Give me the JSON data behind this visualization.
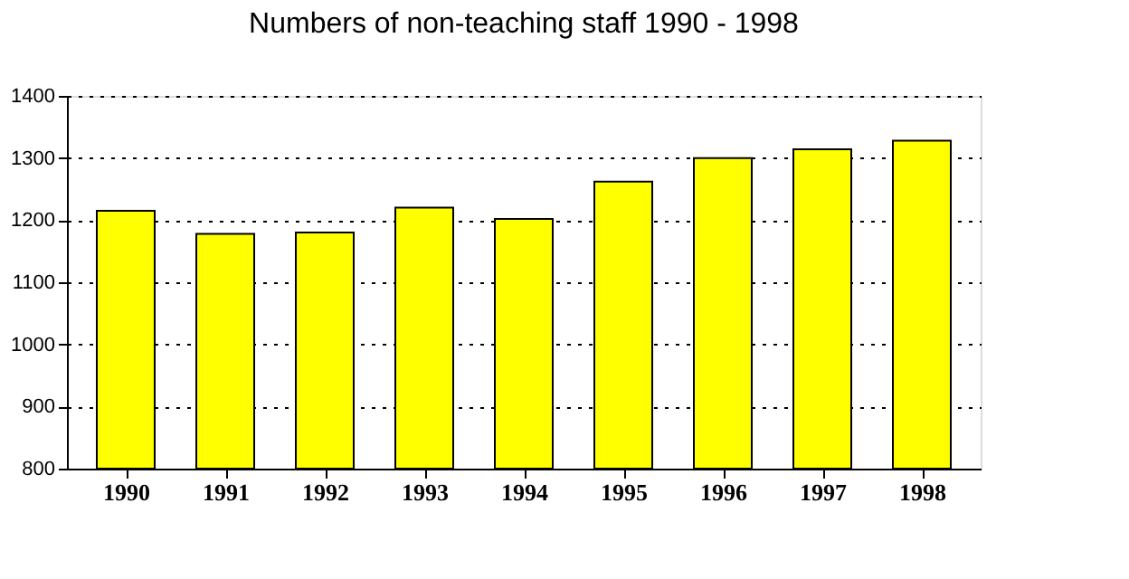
{
  "chart_data": {
    "type": "bar",
    "title": "Numbers of non-teaching staff 1990 - 1998",
    "categories": [
      "1990",
      "1991",
      "1992",
      "1993",
      "1994",
      "1995",
      "1996",
      "1997",
      "1998"
    ],
    "values": [
      1215,
      1178,
      1180,
      1220,
      1202,
      1262,
      1300,
      1314,
      1328
    ],
    "color": "#ffff00",
    "ylim": [
      800,
      1400
    ],
    "yticks": [
      800,
      900,
      1000,
      1100,
      1200,
      1300,
      1400
    ],
    "grid": "y"
  }
}
